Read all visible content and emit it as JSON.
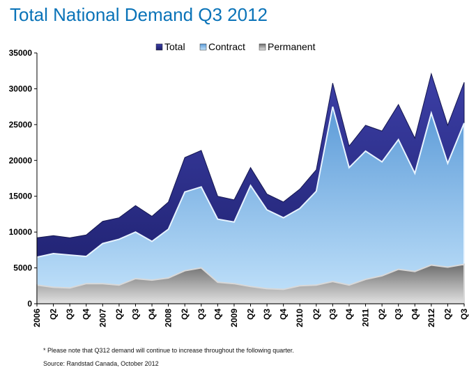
{
  "chart_data": {
    "type": "area",
    "title": "Total National Demand Q3 2012",
    "categories": [
      "2006",
      "Q2",
      "Q3",
      "Q4",
      "2007",
      "Q2",
      "Q3",
      "Q4",
      "2008",
      "Q2",
      "Q3",
      "Q4",
      "2009",
      "Q2",
      "Q3",
      "Q4",
      "2010",
      "Q2",
      "Q3",
      "Q4",
      "2011",
      "Q2",
      "Q3",
      "Q4",
      "2012",
      "Q2",
      "Q3"
    ],
    "series": [
      {
        "name": "Total",
        "color": "#2b2e8c",
        "values": [
          9200,
          9500,
          9200,
          9600,
          11500,
          12000,
          13700,
          12200,
          14200,
          20400,
          21400,
          15000,
          14500,
          19000,
          15300,
          14200,
          16000,
          18700,
          30800,
          22000,
          24900,
          24100,
          27800,
          23100,
          32100,
          24900,
          30900
        ]
      },
      {
        "name": "Contract",
        "color": "#8ec8f4",
        "values": [
          6500,
          7000,
          6800,
          6600,
          8400,
          9000,
          10000,
          8700,
          10400,
          15600,
          16300,
          11800,
          11400,
          16500,
          13100,
          12000,
          13300,
          15700,
          27500,
          19000,
          21300,
          19800,
          22900,
          18200,
          26600,
          19600,
          25200
        ]
      },
      {
        "name": "Permanent",
        "color": "#8a8a8a",
        "values": [
          2600,
          2300,
          2200,
          2800,
          2800,
          2600,
          3500,
          3300,
          3600,
          4600,
          5000,
          3000,
          2800,
          2400,
          2100,
          2000,
          2500,
          2600,
          3100,
          2600,
          3400,
          3900,
          4800,
          4500,
          5400,
          5100,
          5500
        ]
      }
    ],
    "ylim": [
      0,
      35000
    ],
    "yticks": [
      0,
      5000,
      10000,
      15000,
      20000,
      25000,
      30000,
      35000
    ],
    "legend": "top"
  },
  "footnote": "* Please note that Q312 demand will continue to increase throughout the following quarter.",
  "source": "Source: Randstad Canada, October 2012"
}
